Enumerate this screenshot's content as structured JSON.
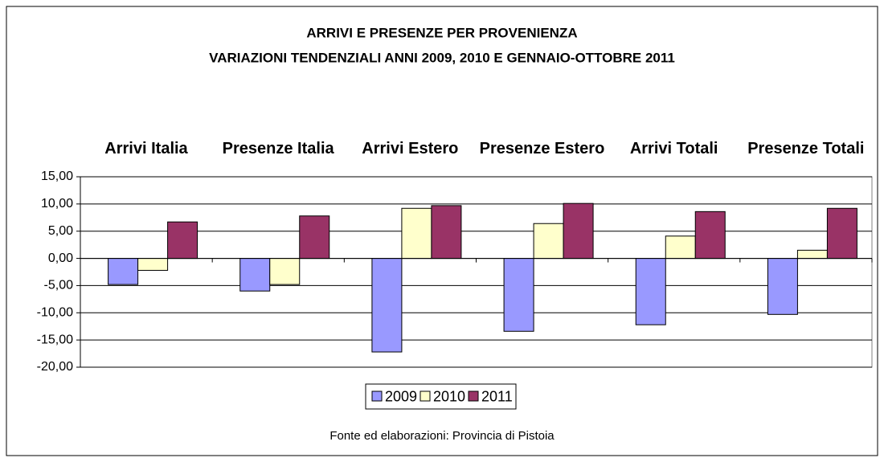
{
  "chart_data": {
    "type": "bar",
    "title": "ARRIVI E PRESENZE PER PROVENIENZA",
    "subtitle": "VARIAZIONI TENDENZIALI ANNI 2009, 2010 E GENNAIO-OTTOBRE 2011",
    "categories": [
      "Arrivi Italia",
      "Presenze Italia",
      "Arrivi Estero",
      "Presenze Estero",
      "Arrivi Totali",
      "Presenze Totali"
    ],
    "series": [
      {
        "name": "2009",
        "color": "#9999ff",
        "values": [
          -4.8,
          -6.0,
          -17.2,
          -13.4,
          -12.2,
          -10.3
        ]
      },
      {
        "name": "2010",
        "color": "#ffffcc",
        "values": [
          -2.2,
          -4.8,
          9.2,
          6.4,
          4.1,
          1.5
        ]
      },
      {
        "name": "2011",
        "color": "#993366",
        "values": [
          6.7,
          7.8,
          9.7,
          10.1,
          8.6,
          9.2
        ]
      }
    ],
    "ylim": [
      -20,
      15
    ],
    "yticks": [
      {
        "value": -20,
        "label": "-20,00"
      },
      {
        "value": -15,
        "label": "-15,00"
      },
      {
        "value": -10,
        "label": "-10,00"
      },
      {
        "value": -5,
        "label": "-5,00"
      },
      {
        "value": 0,
        "label": "0,00"
      },
      {
        "value": 5,
        "label": "5,00"
      },
      {
        "value": 10,
        "label": "10,00"
      },
      {
        "value": 15,
        "label": "15,00"
      }
    ],
    "grid": true,
    "legend": "bottom",
    "note": "Fonte ed elaborazioni: Provincia di Pistoia"
  }
}
